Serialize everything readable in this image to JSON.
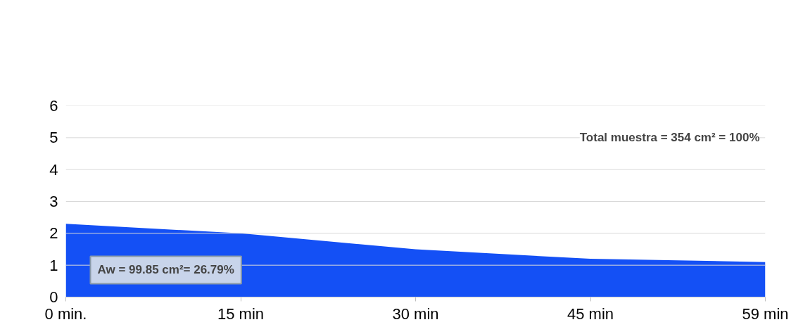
{
  "chart_data": {
    "type": "area",
    "categories": [
      "0 min.",
      "15 min",
      "30 min",
      "45 min",
      "59 min"
    ],
    "values": [
      2.3,
      2.0,
      1.5,
      1.2,
      1.1
    ],
    "color": "#1450f5",
    "ylim": [
      0,
      6
    ],
    "yticks": [
      0,
      1,
      2,
      3,
      4,
      5,
      6
    ],
    "grid": "y",
    "annotations": [
      "Total muestra = 354 cm² = 100%",
      "Aw = 99.85 cm²= 26.79%"
    ]
  }
}
